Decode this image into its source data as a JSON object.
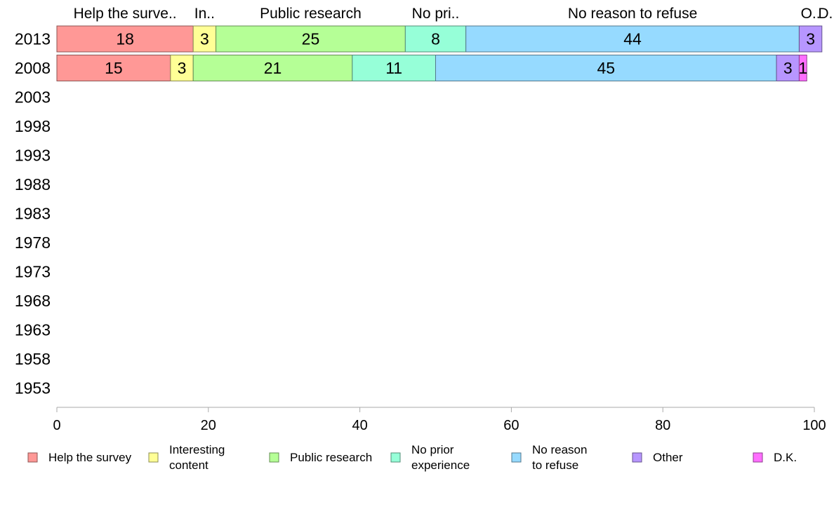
{
  "chart_data": {
    "type": "bar",
    "orientation": "horizontal",
    "stacked": true,
    "xlim": [
      0,
      100
    ],
    "x_ticks": [
      "0",
      "20",
      "40",
      "60",
      "80",
      "100"
    ],
    "categories": [
      "2013",
      "2008",
      "2003",
      "1998",
      "1993",
      "1988",
      "1983",
      "1978",
      "1973",
      "1968",
      "1963",
      "1958",
      "1953"
    ],
    "series": [
      {
        "name": "Help the survey",
        "legend_label": [
          "Help the survey"
        ],
        "top_label": "Help the surve..",
        "color": "#ff9896",
        "values": [
          18,
          15,
          null,
          null,
          null,
          null,
          null,
          null,
          null,
          null,
          null,
          null,
          null
        ]
      },
      {
        "name": "Interesting content",
        "legend_label": [
          "Interesting",
          "content"
        ],
        "top_label": "In..",
        "color": "#ffff96",
        "values": [
          3,
          3,
          null,
          null,
          null,
          null,
          null,
          null,
          null,
          null,
          null,
          null,
          null
        ]
      },
      {
        "name": "Public research",
        "legend_label": [
          "Public research"
        ],
        "top_label": "Public research",
        "color": "#b5ff96",
        "values": [
          25,
          21,
          null,
          null,
          null,
          null,
          null,
          null,
          null,
          null,
          null,
          null,
          null
        ]
      },
      {
        "name": "No prior experience",
        "legend_label": [
          "No prior",
          "experience"
        ],
        "top_label": "No pri..",
        "color": "#96ffd8",
        "values": [
          8,
          11,
          null,
          null,
          null,
          null,
          null,
          null,
          null,
          null,
          null,
          null,
          null
        ]
      },
      {
        "name": "No reason to refuse",
        "legend_label": [
          "No reason",
          "to refuse"
        ],
        "top_label": "No reason to refuse",
        "color": "#96daff",
        "values": [
          44,
          45,
          null,
          null,
          null,
          null,
          null,
          null,
          null,
          null,
          null,
          null,
          null
        ]
      },
      {
        "name": "Other",
        "legend_label": [
          "Other"
        ],
        "top_label": "O..",
        "color": "#b796ff",
        "values": [
          3,
          3,
          null,
          null,
          null,
          null,
          null,
          null,
          null,
          null,
          null,
          null,
          null
        ]
      },
      {
        "name": "D.K.",
        "legend_label": [
          "D.K."
        ],
        "top_label": "D..",
        "color": "#ff6eff",
        "values": [
          0,
          1,
          null,
          null,
          null,
          null,
          null,
          null,
          null,
          null,
          null,
          null,
          null
        ]
      }
    ],
    "label_values": [
      [
        "18",
        "3",
        "25",
        "8",
        "44",
        "3",
        ""
      ],
      [
        "15",
        "3",
        "21",
        "11",
        "45",
        "3",
        "1"
      ]
    ],
    "legend_position": "bottom",
    "grid": false
  }
}
